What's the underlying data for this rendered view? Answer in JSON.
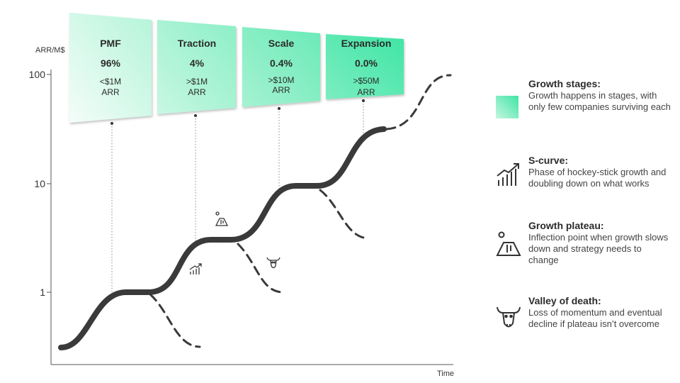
{
  "axes": {
    "y_label": "ARR/M$",
    "x_label": "Time",
    "y_ticks": [
      "100",
      "10",
      "1"
    ]
  },
  "stages": [
    {
      "name": "PMF",
      "pct": "96%",
      "sub1": "<$1M",
      "sub2": "ARR"
    },
    {
      "name": "Traction",
      "pct": "4%",
      "sub1": ">$1M",
      "sub2": "ARR"
    },
    {
      "name": "Scale",
      "pct": "0.4%",
      "sub1": ">$10M",
      "sub2": "ARR"
    },
    {
      "name": "Expansion",
      "pct": "0.0%",
      "sub1": ">$50M",
      "sub2": "ARR"
    }
  ],
  "legend": [
    {
      "icon": "gradient-swatch-icon",
      "title": "Growth stages:",
      "desc": "Growth happens in stages, with only few companies surviving each"
    },
    {
      "icon": "rising-chart-icon",
      "title": "S-curve:",
      "desc": "Phase of hockey-stick growth and doubling down on what works"
    },
    {
      "icon": "volcano-icon",
      "title": "Growth plateau:",
      "desc": "Inflection point when growth slows down and strategy needs to change"
    },
    {
      "icon": "bull-skull-icon",
      "title": "Valley of death:",
      "desc": "Loss of momentum and eventual decline if plateau isn’t overcome"
    }
  ],
  "colors": {
    "curve": "#3a3a3a",
    "accent_light": "#f2fcf7",
    "accent_strong": "#3de6a4"
  }
}
